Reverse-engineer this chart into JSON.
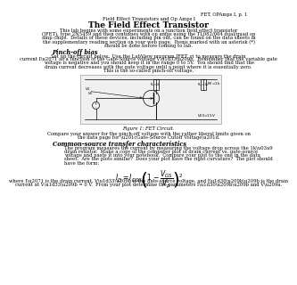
{
  "header_right": "FET, OPAmps I, p. 1",
  "header_center": "Field Effect Transistors and Op Amps I",
  "title": "The Field Effect Transistor",
  "body1_lines": [
    "This lab begins with some experiments on a junction field effect transistor",
    "(JFET), type 2N5459 and then continues with op amps using the TL082/084 dual/quad op",
    "amp chips.  Details of these devices, including pin out, can be found on the data sheets in",
    "the supplementary reading section on your web page.  Items marked with an asterisk (*)",
    "should be done before coming to lab."
  ],
  "section1_title": "Pinch-off bias",
  "section1_body_lines": [
    "Set up the circuit below.  Use the LabView program JFET_vi to measure the drain",
    "current I\\u2071 as a function of the Gate-Source voltage V\\u1d33\\u209b.  Remember that the variable gate",
    "voltage is negative and you should keep it in the range 0 to 5V.  You should find that the",
    "drain current decreases with the gate voltage until a point where it is essentially zero.",
    "This is the so-called pinch-off voltage."
  ],
  "figure_caption": "Figure 1: FET Circuit.",
  "body2_lines": [
    "Compare your answer for the pinch-off voltage with the rather liberal limits given on",
    "the data page for \\u201cGate-Source Cutoff Voltage\\u201d."
  ],
  "section2_title": "Common-source transfer characteristics",
  "section2_body_lines": [
    "The program measures the current by measuring the voltage drop across the 1k\\u03a9",
    "drain resistor.  Make a copy of the computer plot of drain current vs. gate-source",
    "voltage and paste it into your notebook.  Compare your plot to the one in the data",
    "sheet.  Are the plots similar?  Does your plot have the right curvature?  The plot should",
    "have the form:"
  ],
  "body3_lines": [
    "where I\\u2071 is the drain current, V\\u1d33\\u209b is the gate-source voltage, and I\\u1d30\\u209b\\u209b is the drain",
    "current at V\\u1d33\\u209b = 0 V.  From your plot determine the parameters I\\u1d30\\u209b\\u209b and V\\u209a."
  ],
  "bg_color": "#ffffff",
  "text_color": "#000000",
  "circuit_box_color": "#f0f0f0",
  "circuit_border_color": "#aaaaaa"
}
